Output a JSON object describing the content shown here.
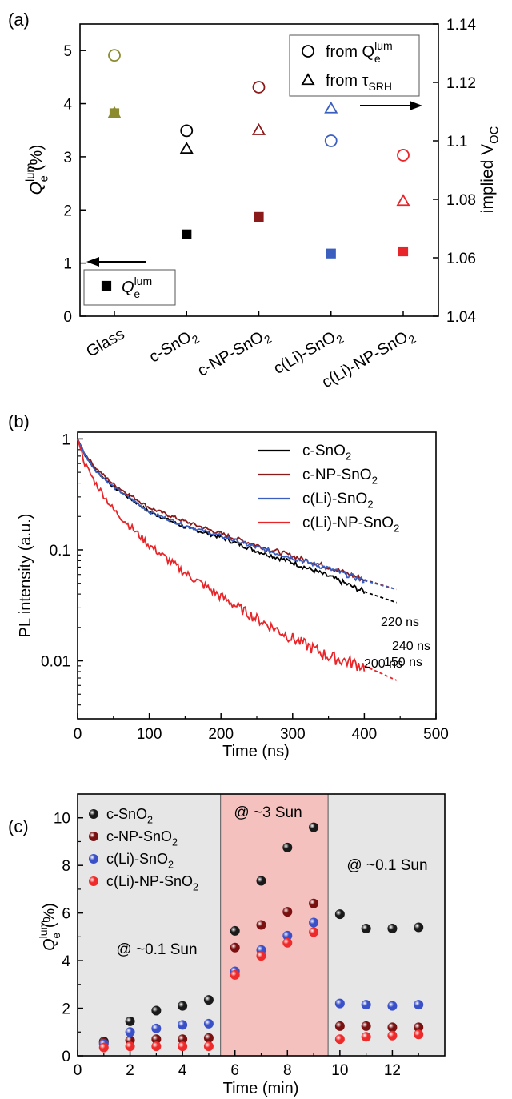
{
  "chart_data": [
    {
      "panel_label": "(a)",
      "type": "scatter",
      "categories": [
        "Glass",
        "c-SnO2",
        "c-NP-SnO2",
        "c(Li)-SnO2",
        "c(Li)-NP-SnO2"
      ],
      "category_tex": [
        {
          "main": "Glass",
          "sub": ""
        },
        {
          "main": "c-SnO",
          "sub": "2"
        },
        {
          "main": "c-NP-SnO",
          "sub": "2"
        },
        {
          "main": "c(Li)-SnO",
          "sub": "2"
        },
        {
          "main": "c(Li)-NP-SnO",
          "sub": "2"
        }
      ],
      "colors": [
        "#8b8b2e",
        "#000000",
        "#8b1a1a",
        "#3a5fbf",
        "#e8262a"
      ],
      "left_axis": {
        "label_main": "Q",
        "label_sup": "lum",
        "label_sub": "e",
        "label_unit": " (%)",
        "ylim": [
          0,
          5.5
        ],
        "ticks": [
          0,
          1,
          2,
          3,
          4,
          5
        ]
      },
      "right_axis": {
        "label_main": "implied V",
        "label_sub": "OC",
        "ylim": [
          1.04,
          1.14
        ],
        "ticks": [
          "1.04",
          "1.06",
          "1.08",
          "1.1",
          "1.12",
          "1.14"
        ]
      },
      "series": [
        {
          "name": "Qe_lum",
          "axis": "left",
          "marker": "square",
          "values": [
            3.82,
            1.54,
            1.87,
            1.18,
            1.22
          ]
        },
        {
          "name": "from Qe_lum",
          "axis": "left",
          "marker": "circle",
          "values": [
            4.91,
            3.49,
            4.31,
            3.3,
            3.03
          ]
        },
        {
          "name": "from tau_SRH",
          "axis": "left",
          "marker": "triangle",
          "values": [
            3.82,
            3.15,
            3.5,
            3.91,
            2.17
          ]
        }
      ],
      "legend_top": [
        {
          "marker": "circle",
          "text": "from Q",
          "sup": "lum",
          "sub": "e"
        },
        {
          "marker": "triangle",
          "text": "from τ",
          "sup": "",
          "sub": "SRH"
        }
      ],
      "legend_bottom": {
        "marker": "square",
        "text": "Q",
        "sup": "lum",
        "sub": "e"
      }
    },
    {
      "panel_label": "(b)",
      "type": "line",
      "xlabel": "Time (ns)",
      "ylabel": "PL intensity (a.u.)",
      "xlim": [
        0,
        500
      ],
      "ylim_log": [
        0.003,
        1.15
      ],
      "x_ticks": [
        "0",
        "100",
        "200",
        "300",
        "400",
        "500"
      ],
      "y_ticks": [
        {
          "value": 1,
          "label": "1"
        },
        {
          "value": 0.1,
          "label": "0.1"
        },
        {
          "value": 0.01,
          "label": "0.01"
        }
      ],
      "log_scale_y": true,
      "series": [
        {
          "name": "c-SnO2",
          "label_main": "c-SnO",
          "label_sub": "2",
          "color": "#000000",
          "tau_ns": 200,
          "x": [
            0,
            10,
            25,
            50,
            100,
            150,
            200,
            250,
            300,
            350,
            400
          ],
          "y": [
            1,
            0.72,
            0.52,
            0.37,
            0.22,
            0.16,
            0.13,
            0.098,
            0.077,
            0.058,
            0.042
          ]
        },
        {
          "name": "c-NP-SnO2",
          "label_main": "c-NP-SnO",
          "label_sub": "2",
          "color": "#8b1a1a",
          "tau_ns": 220,
          "x": [
            0,
            10,
            25,
            50,
            100,
            150,
            200,
            250,
            300,
            350,
            400
          ],
          "y": [
            1,
            0.74,
            0.55,
            0.39,
            0.24,
            0.18,
            0.14,
            0.11,
            0.088,
            0.07,
            0.054
          ]
        },
        {
          "name": "c(Li)-SnO2",
          "label_main": "c(Li)-SnO",
          "label_sub": "2",
          "color": "#3a5fbf",
          "tau_ns": 240,
          "x": [
            0,
            10,
            25,
            50,
            100,
            150,
            200,
            250,
            300,
            350,
            400
          ],
          "y": [
            1,
            0.72,
            0.52,
            0.37,
            0.22,
            0.165,
            0.133,
            0.105,
            0.085,
            0.068,
            0.053
          ]
        },
        {
          "name": "c(Li)-NP-SnO2",
          "label_main": "c(Li)-NP-SnO",
          "label_sub": "2",
          "color": "#e8262a",
          "tau_ns": 150,
          "x": [
            0,
            10,
            25,
            50,
            100,
            150,
            200,
            250,
            300,
            350,
            400
          ],
          "y": [
            1,
            0.6,
            0.4,
            0.23,
            0.11,
            0.062,
            0.038,
            0.024,
            0.016,
            0.011,
            0.009
          ]
        }
      ],
      "fit_labels": [
        {
          "series": "c-NP-SnO2",
          "text": "220 ns",
          "color": "#8b1a1a"
        },
        {
          "series": "c(Li)-SnO2",
          "text": "240 ns",
          "color": "#3a5fbf"
        },
        {
          "series": "c-SnO2",
          "text": "200 ns",
          "color": "#000000"
        },
        {
          "series": "c(Li)-NP-SnO2",
          "text": "150 ns",
          "color": "#e8262a"
        }
      ]
    },
    {
      "panel_label": "(c)",
      "type": "scatter",
      "xlabel": "Time (min)",
      "ylabel_main": "Q",
      "ylabel_sup": "lum",
      "ylabel_sub": "e",
      "ylabel_unit": " (%)",
      "xlim": [
        0,
        14
      ],
      "ylim": [
        0,
        11
      ],
      "x_ticks": [
        0,
        2,
        4,
        6,
        8,
        10,
        12
      ],
      "y_ticks": [
        0,
        2,
        4,
        6,
        8,
        10
      ],
      "regions": [
        {
          "x0": 0,
          "x1": 5.45,
          "color": "#e6e6e6",
          "label": "@ ~0.1 Sun"
        },
        {
          "x0": 5.45,
          "x1": 9.55,
          "color": "#f5c1bf",
          "label": "@ ~3 Sun"
        },
        {
          "x0": 9.55,
          "x1": 14,
          "color": "#e6e6e6",
          "label": "@ ~0.1 Sun"
        }
      ],
      "series": [
        {
          "name": "c-SnO2",
          "label_main": "c-SnO",
          "label_sub": "2",
          "color": "#1a1a1a",
          "x": [
            1,
            2,
            3,
            4,
            5,
            6,
            7,
            8,
            9,
            10,
            11,
            12,
            13
          ],
          "y": [
            0.6,
            1.45,
            1.9,
            2.1,
            2.35,
            5.25,
            7.35,
            8.75,
            9.6,
            5.95,
            5.35,
            5.35,
            5.4
          ]
        },
        {
          "name": "c-NP-SnO2",
          "label_main": "c-NP-SnO",
          "label_sub": "2",
          "color": "#7a1010",
          "x": [
            1,
            2,
            3,
            4,
            5,
            6,
            7,
            8,
            9,
            10,
            11,
            12,
            13
          ],
          "y": [
            0.55,
            0.65,
            0.7,
            0.7,
            0.75,
            4.55,
            5.5,
            6.05,
            6.4,
            1.25,
            1.25,
            1.2,
            1.2
          ]
        },
        {
          "name": "c(Li)-SnO2",
          "label_main": "c(Li)-SnO",
          "label_sub": "2",
          "color": "#3a50c8",
          "x": [
            1,
            2,
            3,
            4,
            5,
            6,
            7,
            8,
            9,
            10,
            11,
            12,
            13
          ],
          "y": [
            0.5,
            1.0,
            1.15,
            1.3,
            1.35,
            3.55,
            4.45,
            5.05,
            5.6,
            2.2,
            2.15,
            2.1,
            2.15
          ]
        },
        {
          "name": "c(Li)-NP-SnO2",
          "label_main": "c(Li)-NP-SnO",
          "label_sub": "2",
          "color": "#ee2a2a",
          "x": [
            1,
            2,
            3,
            4,
            5,
            6,
            7,
            8,
            9,
            10,
            11,
            12,
            13
          ],
          "y": [
            0.35,
            0.4,
            0.4,
            0.4,
            0.4,
            3.4,
            4.2,
            4.75,
            5.2,
            0.7,
            0.8,
            0.85,
            0.9
          ]
        }
      ]
    }
  ]
}
